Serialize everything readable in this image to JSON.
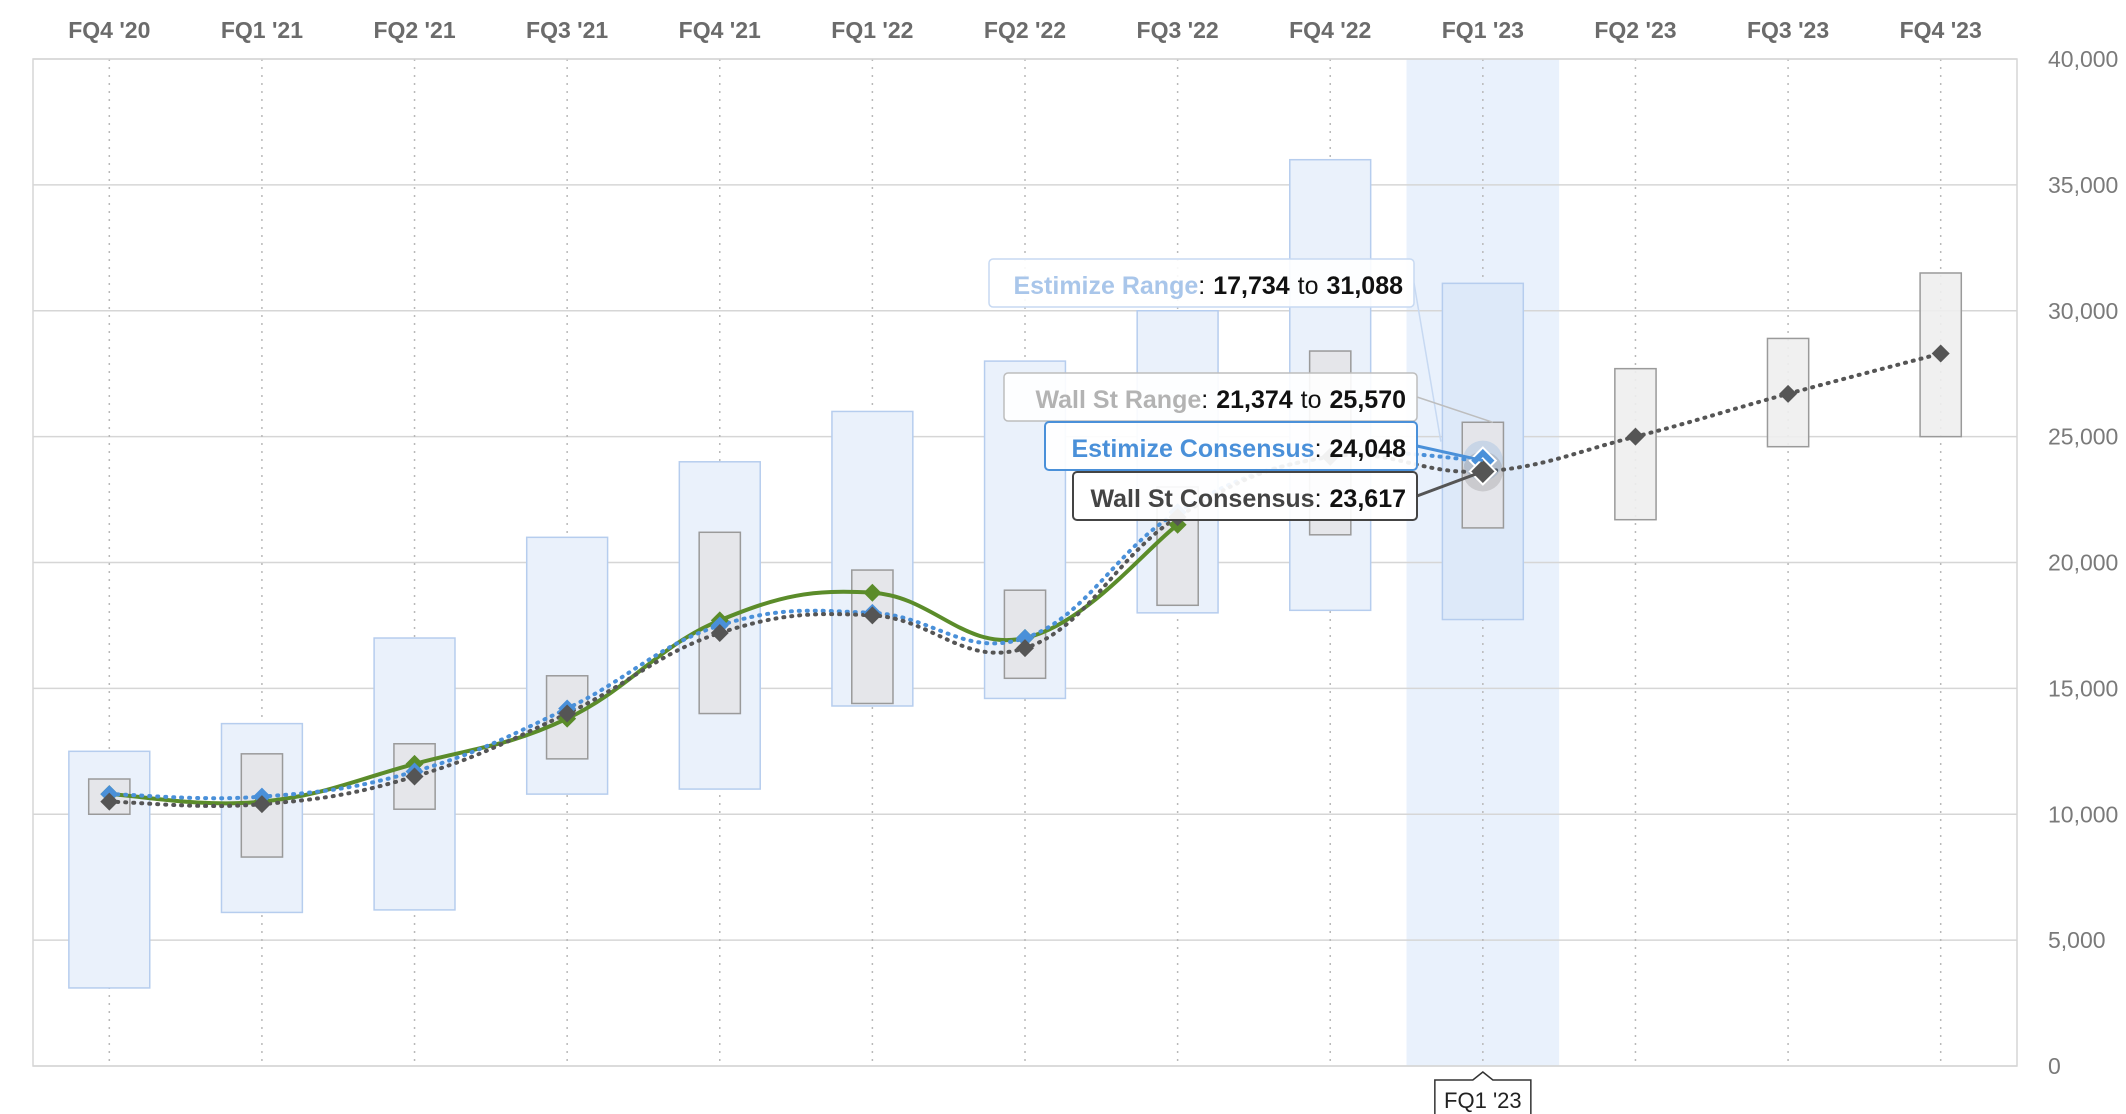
{
  "chart_data": {
    "type": "line",
    "categories": [
      "FQ4 '20",
      "FQ1 '21",
      "FQ2 '21",
      "FQ3 '21",
      "FQ4 '21",
      "FQ1 '22",
      "FQ2 '22",
      "FQ3 '22",
      "FQ4 '22",
      "FQ1 '23",
      "FQ2 '23",
      "FQ3 '23",
      "FQ4 '23"
    ],
    "y_ticks": [
      "0",
      "5,000",
      "10,000",
      "15,000",
      "20,000",
      "25,000",
      "30,000",
      "35,000",
      "40,000"
    ],
    "ylim": [
      0,
      40000
    ],
    "grid": true,
    "y_axis_position": "right",
    "highlighted_category": "FQ1 '23",
    "estimize_range": [
      [
        3100,
        12500
      ],
      [
        6100,
        13600
      ],
      [
        6200,
        17000
      ],
      [
        10800,
        21000
      ],
      [
        11000,
        24000
      ],
      [
        14300,
        26000
      ],
      [
        14600,
        28000
      ],
      [
        18000,
        30000
      ],
      [
        18100,
        36000
      ],
      [
        17734,
        31088
      ],
      null,
      null,
      null
    ],
    "wallst_range": [
      [
        10000,
        11400
      ],
      [
        8300,
        12400
      ],
      [
        10200,
        12800
      ],
      [
        12200,
        15500
      ],
      [
        14000,
        21200
      ],
      [
        14400,
        19700
      ],
      [
        15400,
        18900
      ],
      [
        18300,
        23000
      ],
      [
        21100,
        28400
      ],
      [
        21374,
        25570
      ],
      [
        21700,
        27700
      ],
      [
        24600,
        28900
      ],
      [
        25000,
        31500
      ]
    ],
    "series": [
      {
        "values": [
          10800,
          10500,
          12000,
          13800,
          17700,
          18800,
          17000,
          21500,
          null,
          null,
          null,
          null,
          null
        ],
        "color": "#5b8c2a",
        "style": "solid"
      },
      {
        "values": [
          10800,
          10700,
          11700,
          14200,
          17500,
          18000,
          17000,
          22000,
          24200,
          24048,
          null,
          null,
          null
        ],
        "color": "#4a90d9",
        "style": "dotted"
      },
      {
        "values": [
          10500,
          10400,
          11500,
          14000,
          17200,
          17900,
          16600,
          21800,
          24200,
          23617,
          25000,
          26700,
          28300
        ],
        "color": "#555555",
        "style": "dotted"
      }
    ],
    "tooltips": {
      "estimize_range": {
        "label": "Estimize Range",
        "low": "17,734",
        "to": "to",
        "high": "31,088",
        "sep": ":"
      },
      "wallst_range": {
        "label": "Wall St Range",
        "low": "21,374",
        "to": "to",
        "high": "25,570",
        "sep": ":"
      },
      "estimize_consensus": {
        "label": "Estimize Consensus",
        "value": "24,048",
        "sep": ":"
      },
      "wallst_consensus": {
        "label": "Wall St Consensus",
        "value": "23,617",
        "sep": ":"
      }
    },
    "crosshair_label": "FQ1 '23",
    "colors": {
      "estimize_box_fill": "#eaf1fb",
      "estimize_box_stroke": "#b6cdee",
      "wallst_box_fill": "#e4e4e8",
      "wallst_box_stroke": "#9a9a9a",
      "highlight_band": "#e9f1fc",
      "grid": "#d6d6d6",
      "estimize_label": "#a9c6ea",
      "wallst_label": "#b3b3b3",
      "estimize_consensus_label": "#4a90d9",
      "wallst_consensus_label": "#444444"
    }
  }
}
